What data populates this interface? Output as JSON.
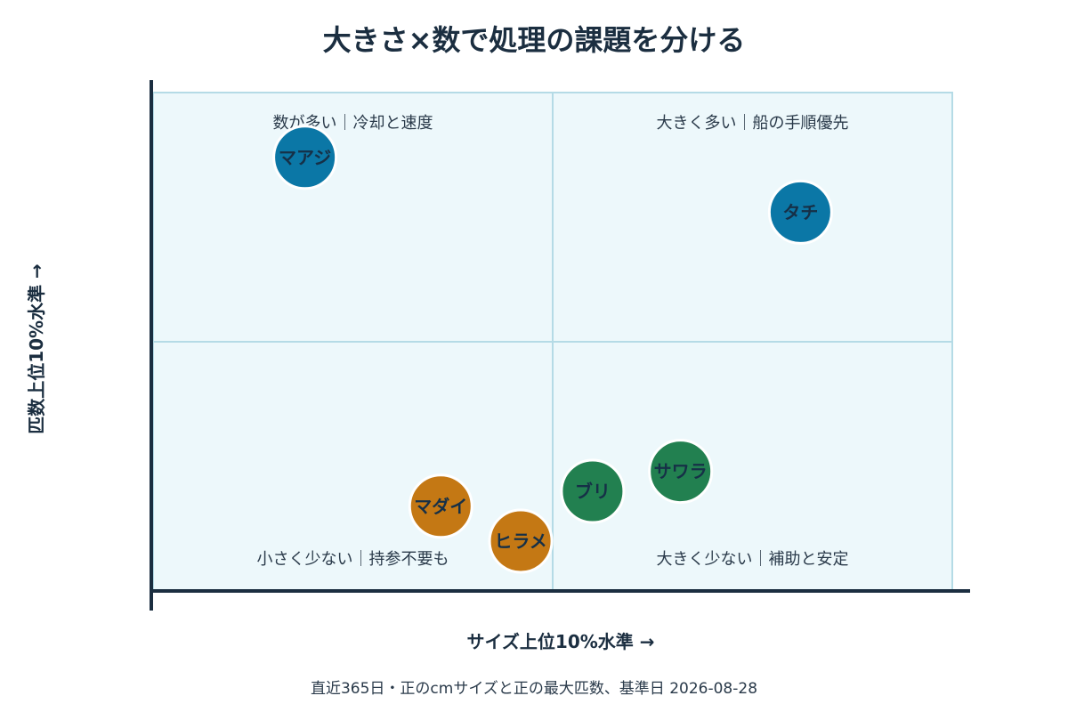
{
  "chart_data": {
    "type": "scatter",
    "title": "大きさ×数で処理の課題を分ける",
    "xlabel": "サイズ上位10%水準 →",
    "ylabel": "匹数上位10%水準 →",
    "xlim": [
      0,
      100
    ],
    "ylim": [
      0,
      100
    ],
    "divider": {
      "x": 50,
      "y": 50
    },
    "grid": false,
    "quadrants": [
      {
        "id": "top-left",
        "text": "数が多い｜冷却と速度"
      },
      {
        "id": "top-right",
        "text": "大きく多い｜船の手順優先"
      },
      {
        "id": "bottom-left",
        "text": "小さく少ない｜持参不要も"
      },
      {
        "id": "bottom-right",
        "text": "大きく少ない｜補助と安定"
      }
    ],
    "points": [
      {
        "name": "マアジ",
        "x": 19,
        "y": 87,
        "color": "#0b77a6"
      },
      {
        "name": "タチ",
        "x": 81,
        "y": 76,
        "color": "#0b77a6"
      },
      {
        "name": "サワラ",
        "x": 66,
        "y": 24,
        "color": "#228050"
      },
      {
        "name": "ブリ",
        "x": 55,
        "y": 20,
        "color": "#228050"
      },
      {
        "name": "マダイ",
        "x": 36,
        "y": 17,
        "color": "#c47814"
      },
      {
        "name": "ヒラメ",
        "x": 46,
        "y": 10,
        "color": "#c47814"
      }
    ],
    "footnote": "直近365日・正のcmサイズと正の最大匹数、基準日 2026-08-28",
    "colors": {
      "plot_background": "#edf8fb",
      "quadrant_border": "#b5dbe6",
      "axis": "#1b2e40"
    }
  }
}
